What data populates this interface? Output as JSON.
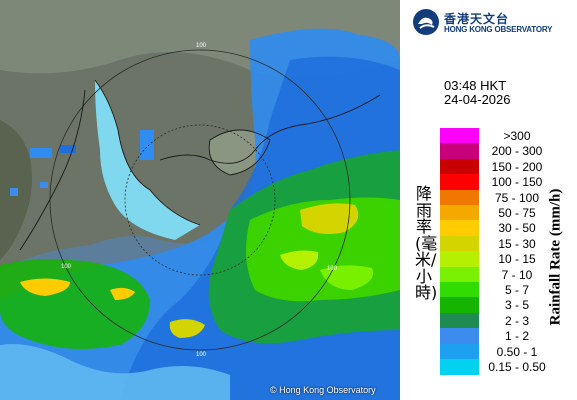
{
  "header": {
    "logo_cn": "香港天文台",
    "logo_en": "HONG KONG OBSERVATORY"
  },
  "timestamp": {
    "time": "03:48 HKT",
    "date": "24-04-2026"
  },
  "map": {
    "copyright": "© Hong Kong Observatory",
    "range_label": "100"
  },
  "legend": {
    "title_cn": "降雨率(毫米/小時)",
    "title_en": "Rainfall Rate (mm/h)",
    "items": [
      {
        "label": ">300",
        "color": "#ff00ff"
      },
      {
        "label": "200 - 300",
        "color": "#c8007c"
      },
      {
        "label": "150 - 200",
        "color": "#c80000"
      },
      {
        "label": "100 - 150",
        "color": "#ff0000"
      },
      {
        "label": "75 - 100",
        "color": "#f07800"
      },
      {
        "label": "50 - 75",
        "color": "#f5a800"
      },
      {
        "label": "30 - 50",
        "color": "#ffcc00"
      },
      {
        "label": "15 - 30",
        "color": "#d4d400"
      },
      {
        "label": "10 - 15",
        "color": "#b4f000"
      },
      {
        "label": "7 - 10",
        "color": "#78f000"
      },
      {
        "label": "5 - 7",
        "color": "#32dc00"
      },
      {
        "label": "3 - 5",
        "color": "#14b400"
      },
      {
        "label": "2 - 3",
        "color": "#1e8c50"
      },
      {
        "label": "1 - 2",
        "color": "#3c8cf0"
      },
      {
        "label": "0.50 - 1",
        "color": "#1ea0f0"
      },
      {
        "label": "0.15 - 0.50",
        "color": "#00d2f0"
      }
    ]
  }
}
